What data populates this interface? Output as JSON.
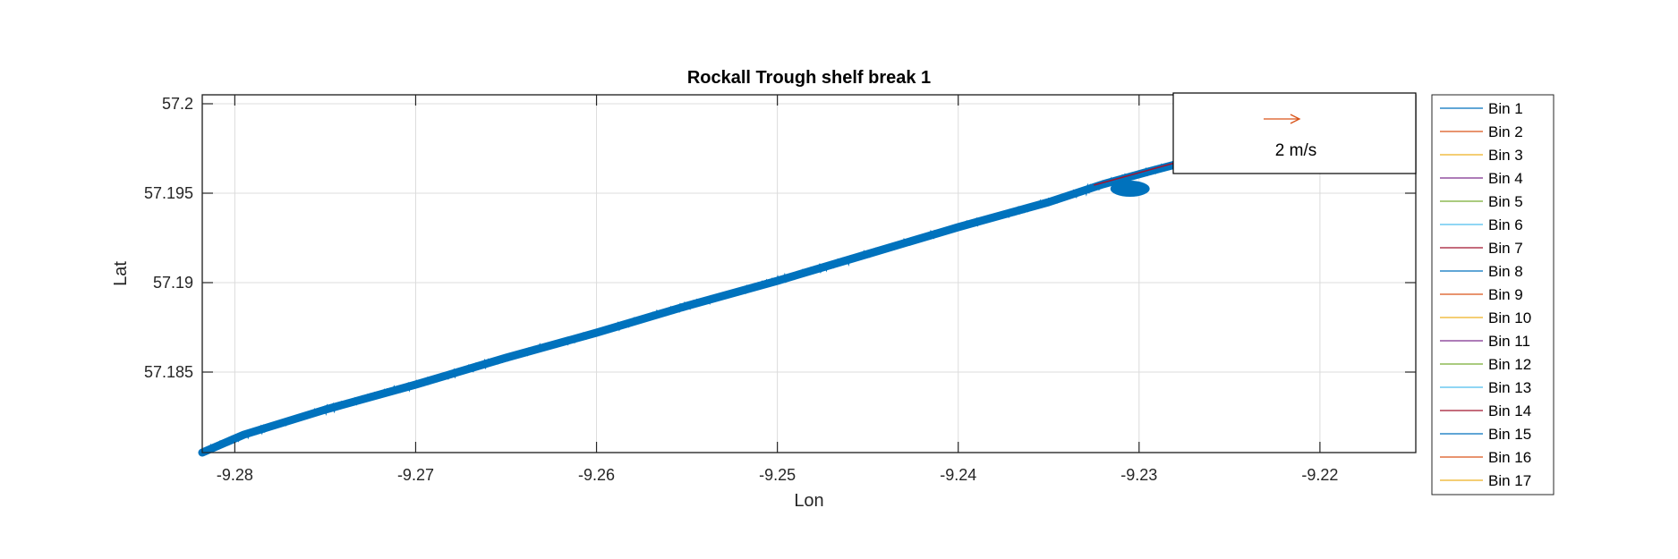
{
  "chart_data": {
    "type": "line",
    "title": "Rockall Trough shelf break 1",
    "xlabel": "Lon",
    "ylabel": "Lat",
    "xlim": [
      -9.2818,
      -9.2147
    ],
    "ylim": [
      57.1805,
      57.2005
    ],
    "xticks": [
      -9.28,
      -9.27,
      -9.26,
      -9.25,
      -9.24,
      -9.23,
      -9.22
    ],
    "xtick_labels": [
      "-9.28",
      "-9.27",
      "-9.26",
      "-9.25",
      "-9.24",
      "-9.23",
      "-9.22"
    ],
    "yticks": [
      57.185,
      57.19,
      57.195,
      57.2
    ],
    "ytick_labels": [
      "57.185",
      "57.19",
      "57.195",
      "57.2"
    ],
    "grid": true,
    "legend_position": "outside-right",
    "series": [
      {
        "name": "Bin 1",
        "color": "#0072BD"
      },
      {
        "name": "Bin 2",
        "color": "#D95319"
      },
      {
        "name": "Bin 3",
        "color": "#EDB120"
      },
      {
        "name": "Bin 4",
        "color": "#7E2F8E"
      },
      {
        "name": "Bin 5",
        "color": "#77AC30"
      },
      {
        "name": "Bin 6",
        "color": "#4DBEEE"
      },
      {
        "name": "Bin 7",
        "color": "#A2142F"
      },
      {
        "name": "Bin 8",
        "color": "#0072BD"
      },
      {
        "name": "Bin 9",
        "color": "#D95319"
      },
      {
        "name": "Bin 10",
        "color": "#EDB120"
      },
      {
        "name": "Bin 11",
        "color": "#7E2F8E"
      },
      {
        "name": "Bin 12",
        "color": "#77AC30"
      },
      {
        "name": "Bin 13",
        "color": "#4DBEEE"
      },
      {
        "name": "Bin 14",
        "color": "#A2142F"
      },
      {
        "name": "Bin 15",
        "color": "#0072BD"
      },
      {
        "name": "Bin 16",
        "color": "#D95319"
      },
      {
        "name": "Bin 17",
        "color": "#EDB120"
      }
    ],
    "track": {
      "color": "#0072BD",
      "x": [
        -9.2818,
        -9.2795,
        -9.275,
        -9.27,
        -9.265,
        -9.26,
        -9.255,
        -9.25,
        -9.245,
        -9.24,
        -9.235,
        -9.232,
        -9.2295,
        -9.228
      ],
      "y": [
        57.1805,
        57.1815,
        57.1829,
        57.1843,
        57.1858,
        57.1872,
        57.1887,
        57.1901,
        57.1916,
        57.1931,
        57.1945,
        57.1955,
        57.1962,
        57.1966
      ]
    },
    "red_segment": {
      "color": "#A2142F",
      "x": [
        -9.2325,
        -9.228
      ],
      "y": [
        57.19545,
        57.1967
      ]
    },
    "reference_vector": {
      "label": "2 m/s",
      "color": "#D95319"
    }
  }
}
